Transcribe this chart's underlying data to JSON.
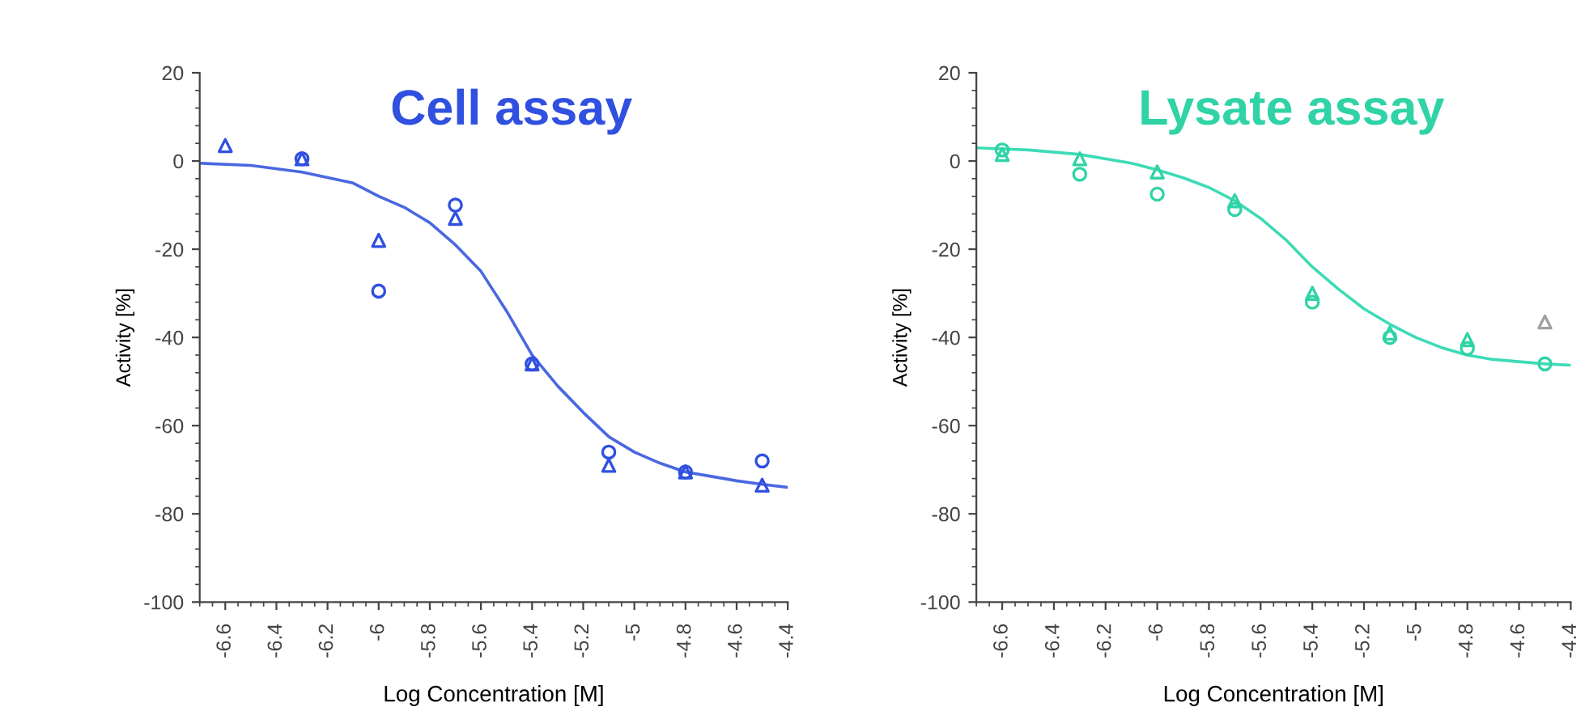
{
  "chart_data": [
    {
      "type": "scatter",
      "title": "Cell assay",
      "xlabel": "Log Concentration [M]",
      "ylabel": "Activity [%]",
      "xlim": [
        -6.7,
        -4.4
      ],
      "xticks": [
        -6.6,
        -6.4,
        -6.2,
        -6,
        -5.8,
        -5.6,
        -5.4,
        -5.2,
        -5,
        -4.8,
        -4.6,
        -4.4
      ],
      "ylim": [
        -100,
        20
      ],
      "yticks": [
        -100,
        -80,
        -60,
        -40,
        -20,
        0,
        20
      ],
      "grid": false,
      "series": [
        {
          "marker": "circle",
          "color": "#3050e0",
          "x": [
            -6.3,
            -6.0,
            -5.7,
            -5.4,
            -5.1,
            -4.8,
            -4.5
          ],
          "values": [
            0.5,
            -29.5,
            -10,
            -46,
            -66,
            -70.5,
            -68
          ]
        },
        {
          "marker": "triangle",
          "color": "#3050e0",
          "x": [
            -6.6,
            -6.3,
            -6.0,
            -5.7,
            -5.4,
            -5.1,
            -4.8,
            -4.5
          ],
          "values": [
            3.5,
            0.5,
            -18,
            -13,
            -46,
            -69,
            -70.5,
            -73.5
          ]
        },
        {
          "type": "line",
          "marker": "none",
          "color": "#4a68e0",
          "x": [
            -6.7,
            -6.5,
            -6.3,
            -6.1,
            -6.0,
            -5.9,
            -5.8,
            -5.7,
            -5.6,
            -5.5,
            -5.4,
            -5.3,
            -5.2,
            -5.1,
            -5.0,
            -4.9,
            -4.8,
            -4.7,
            -4.6,
            -4.5,
            -4.4
          ],
          "values": [
            -0.5,
            -1,
            -2.5,
            -5,
            -8,
            -10.5,
            -14,
            -19,
            -25,
            -34,
            -44,
            -51,
            -57,
            -62.5,
            -66,
            -68.5,
            -70.5,
            -71.5,
            -72.5,
            -73.3,
            -74
          ]
        }
      ]
    },
    {
      "type": "scatter",
      "title": "Lysate assay",
      "xlabel": "Log Concentration [M]",
      "ylabel": "Activity [%]",
      "xlim": [
        -6.7,
        -4.4
      ],
      "xticks": [
        -6.6,
        -6.4,
        -6.2,
        -6,
        -5.8,
        -5.6,
        -5.4,
        -5.2,
        -5,
        -4.8,
        -4.6,
        -4.4
      ],
      "ylim": [
        -100,
        20
      ],
      "yticks": [
        -100,
        -80,
        -60,
        -40,
        -20,
        0,
        20
      ],
      "grid": false,
      "series": [
        {
          "marker": "triangle",
          "color": "#2fd3a6",
          "x": [
            -6.6,
            -6.3,
            -6.0,
            -5.7,
            -5.4,
            -5.1,
            -4.8
          ],
          "values": [
            1.5,
            0.5,
            -2.5,
            -9,
            -30,
            -39,
            -40.5
          ]
        },
        {
          "marker": "triangle",
          "color": "#a0a0a0",
          "x": [
            -4.5
          ],
          "values": [
            -36.5
          ]
        },
        {
          "marker": "circle",
          "color": "#2fd3a6",
          "x": [
            -6.6,
            -6.3,
            -6.0,
            -5.7,
            -5.4,
            -5.1,
            -4.8,
            -4.5
          ],
          "values": [
            2.5,
            -3,
            -7.5,
            -11,
            -32,
            -40,
            -42.5,
            -46
          ]
        },
        {
          "type": "line",
          "marker": "none",
          "color": "#3ddbb5",
          "x": [
            -6.7,
            -6.5,
            -6.3,
            -6.1,
            -6.0,
            -5.9,
            -5.8,
            -5.7,
            -5.6,
            -5.5,
            -5.4,
            -5.3,
            -5.2,
            -5.1,
            -5.0,
            -4.9,
            -4.8,
            -4.7,
            -4.6,
            -4.5,
            -4.4
          ],
          "values": [
            3,
            2.5,
            1.5,
            -0.5,
            -2,
            -3.8,
            -6,
            -9,
            -13,
            -18,
            -24,
            -29,
            -33.5,
            -37,
            -40,
            -42.3,
            -44,
            -45,
            -45.5,
            -46,
            -46.3
          ]
        }
      ]
    }
  ]
}
